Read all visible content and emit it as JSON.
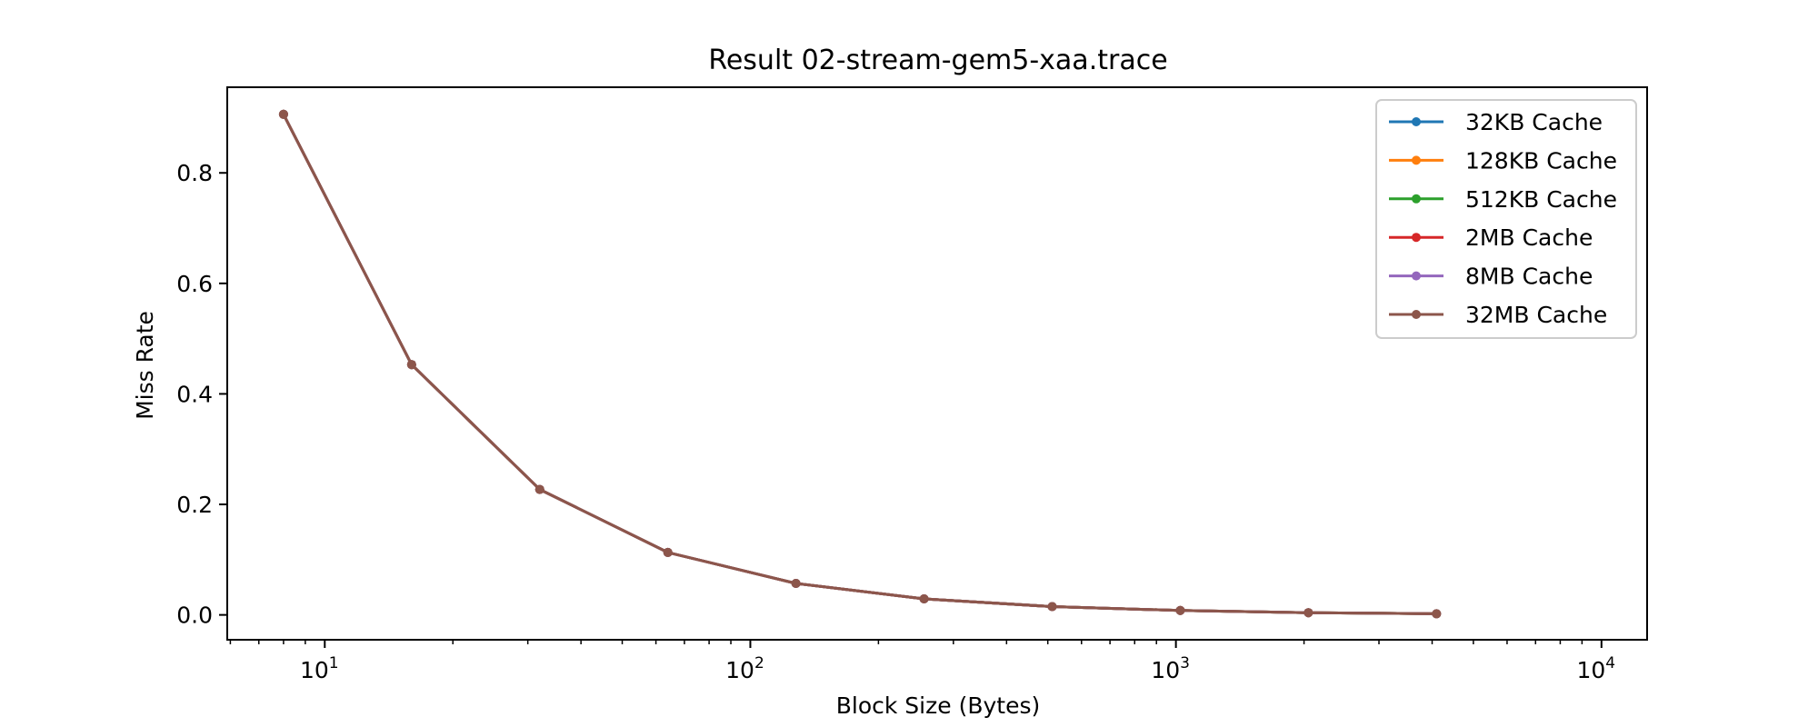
{
  "chart_data": {
    "type": "line",
    "title": "Result 02-stream-gem5-xaa.trace",
    "xlabel": "Block Size (Bytes)",
    "ylabel": "Miss Rate",
    "xscale": "log",
    "xlim": [
      5.9,
      12800
    ],
    "ylim": [
      -0.045,
      0.955
    ],
    "x_ticks": [
      {
        "value": 10,
        "base": "10",
        "exp": "1"
      },
      {
        "value": 100,
        "base": "10",
        "exp": "2"
      },
      {
        "value": 1000,
        "base": "10",
        "exp": "3"
      },
      {
        "value": 10000,
        "base": "10",
        "exp": "4"
      }
    ],
    "y_ticks": [
      {
        "value": 0.0,
        "label": "0.0"
      },
      {
        "value": 0.2,
        "label": "0.2"
      },
      {
        "value": 0.4,
        "label": "0.4"
      },
      {
        "value": 0.6,
        "label": "0.6"
      },
      {
        "value": 0.8,
        "label": "0.8"
      }
    ],
    "grid": false,
    "legend_position": "top-right",
    "x": [
      8,
      16,
      32,
      64,
      128,
      256,
      512,
      1024,
      2048,
      4096
    ],
    "series": [
      {
        "name": "32KB Cache",
        "color": "#1f77b4",
        "values": [
          0.906,
          0.453,
          0.227,
          0.113,
          0.057,
          0.029,
          0.015,
          0.008,
          0.004,
          0.002
        ]
      },
      {
        "name": "128KB Cache",
        "color": "#ff7f0e",
        "values": [
          0.906,
          0.453,
          0.227,
          0.113,
          0.057,
          0.029,
          0.015,
          0.008,
          0.004,
          0.002
        ]
      },
      {
        "name": "512KB Cache",
        "color": "#2ca02c",
        "values": [
          0.906,
          0.453,
          0.227,
          0.113,
          0.057,
          0.029,
          0.015,
          0.008,
          0.004,
          0.002
        ]
      },
      {
        "name": "2MB Cache",
        "color": "#d62728",
        "values": [
          0.906,
          0.453,
          0.227,
          0.113,
          0.057,
          0.029,
          0.015,
          0.008,
          0.004,
          0.002
        ]
      },
      {
        "name": "8MB Cache",
        "color": "#9467bd",
        "values": [
          0.906,
          0.453,
          0.227,
          0.113,
          0.057,
          0.029,
          0.015,
          0.008,
          0.004,
          0.002
        ]
      },
      {
        "name": "32MB Cache",
        "color": "#8c564b",
        "values": [
          0.906,
          0.453,
          0.227,
          0.113,
          0.057,
          0.029,
          0.015,
          0.008,
          0.004,
          0.002
        ]
      }
    ]
  }
}
